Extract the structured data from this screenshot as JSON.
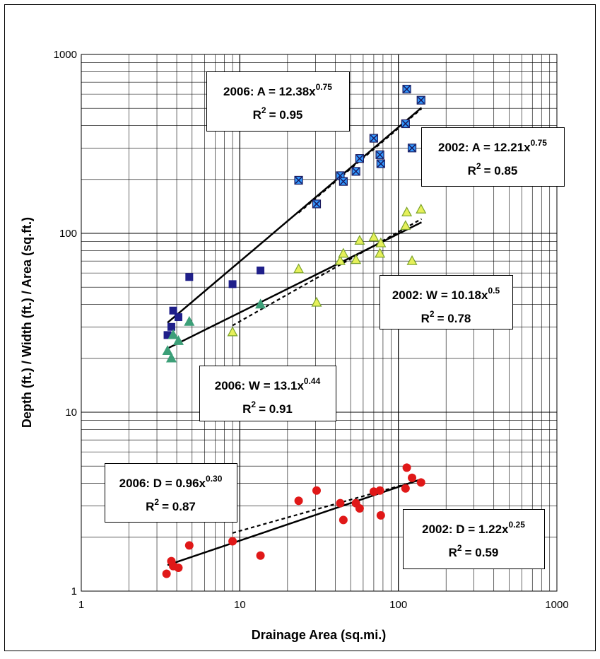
{
  "chart_data": {
    "type": "scatter",
    "xscale": "log",
    "yscale": "log",
    "xlim": [
      1,
      1000
    ],
    "ylim": [
      1,
      1000
    ],
    "grid": true,
    "xlabel": "Drainage Area (sq.mi.)",
    "ylabel": "Depth (ft.) / Width (ft.) / Area (sq.ft.)",
    "xticks": [
      "1",
      "10",
      "100",
      "1000"
    ],
    "yticks": [
      "1",
      "10",
      "100",
      "1000"
    ],
    "series": [
      {
        "color": "#1f1f8a",
        "marker": "square",
        "points": [
          [
            3.5,
            27
          ],
          [
            3.7,
            30
          ],
          [
            3.8,
            37
          ],
          [
            4.1,
            34
          ],
          [
            4.8,
            57
          ],
          [
            9,
            52
          ],
          [
            13.5,
            62
          ]
        ]
      },
      {
        "color": "#3399ff",
        "marker": "square-x",
        "points": [
          [
            23.5,
            198
          ],
          [
            30.5,
            146
          ],
          [
            43,
            210
          ],
          [
            45,
            195
          ],
          [
            54,
            222
          ],
          [
            57,
            262
          ],
          [
            70,
            340
          ],
          [
            76.5,
            275
          ],
          [
            77.5,
            245
          ],
          [
            111,
            410
          ],
          [
            113,
            640
          ],
          [
            122,
            300
          ],
          [
            139,
            555
          ]
        ]
      },
      {
        "color": "#3c9f78",
        "marker": "triangle",
        "points": [
          [
            3.5,
            22
          ],
          [
            3.7,
            20
          ],
          [
            3.8,
            27
          ],
          [
            4.1,
            25
          ],
          [
            4.8,
            32
          ],
          [
            13.5,
            40
          ]
        ]
      },
      {
        "color": "#e6f05a",
        "marker": "triangle",
        "points": [
          [
            9,
            28
          ],
          [
            23.5,
            63
          ],
          [
            30.5,
            41
          ],
          [
            43,
            70
          ],
          [
            45,
            77
          ],
          [
            54,
            71
          ],
          [
            57,
            91
          ],
          [
            70,
            95
          ],
          [
            76.5,
            77
          ],
          [
            77.5,
            88
          ],
          [
            111,
            110
          ],
          [
            113,
            131
          ],
          [
            122,
            70
          ],
          [
            139,
            136
          ]
        ]
      },
      {
        "color": "#e01818",
        "marker": "circle",
        "points": [
          [
            3.45,
            1.25
          ],
          [
            3.7,
            1.47
          ],
          [
            3.8,
            1.38
          ],
          [
            4.1,
            1.35
          ],
          [
            4.8,
            1.8
          ],
          [
            9,
            1.9
          ],
          [
            13.5,
            1.58
          ],
          [
            23.5,
            3.2
          ],
          [
            30.5,
            3.65
          ],
          [
            43,
            3.1
          ],
          [
            45,
            2.5
          ],
          [
            54,
            3.1
          ],
          [
            57,
            2.9
          ],
          [
            70,
            3.6
          ],
          [
            76.5,
            3.65
          ],
          [
            77.5,
            2.65
          ],
          [
            111,
            3.75
          ],
          [
            113,
            4.9
          ],
          [
            122,
            4.3
          ],
          [
            139,
            4.05
          ]
        ]
      }
    ],
    "trendlines": [
      {
        "a": 12.38,
        "b": 0.75,
        "x": [
          3.5,
          140
        ],
        "style": "solid"
      },
      {
        "a": 12.21,
        "b": 0.75,
        "x": [
          23.5,
          140
        ],
        "style": "dashed"
      },
      {
        "a": 13.1,
        "b": 0.44,
        "x": [
          3.5,
          140
        ],
        "style": "solid"
      },
      {
        "a": 10.18,
        "b": 0.5,
        "x": [
          9,
          140
        ],
        "style": "dashed"
      },
      {
        "a": 0.96,
        "b": 0.3,
        "x": [
          3.5,
          140
        ],
        "style": "solid"
      },
      {
        "a": 1.22,
        "b": 0.25,
        "x": [
          9,
          140
        ],
        "style": "dashed"
      }
    ],
    "annotations": [
      {
        "eq_main": "2006: A = 12.38x",
        "exp": "0.75",
        "r2": "= 0.95"
      },
      {
        "eq_main": "2002: A = 12.21x",
        "exp": "0.75",
        "r2": "= 0.85"
      },
      {
        "eq_main": "2002: W = 10.18x",
        "exp": "0.5",
        "r2": "= 0.78"
      },
      {
        "eq_main": "2006: W = 13.1x",
        "exp": "0.44",
        "r2": "= 0.91"
      },
      {
        "eq_main": "2006: D = 0.96x",
        "exp": "0.30",
        "r2": "= 0.87"
      },
      {
        "eq_main": "2002: D = 1.22x",
        "exp": "0.25",
        "r2": "= 0.59"
      }
    ]
  }
}
